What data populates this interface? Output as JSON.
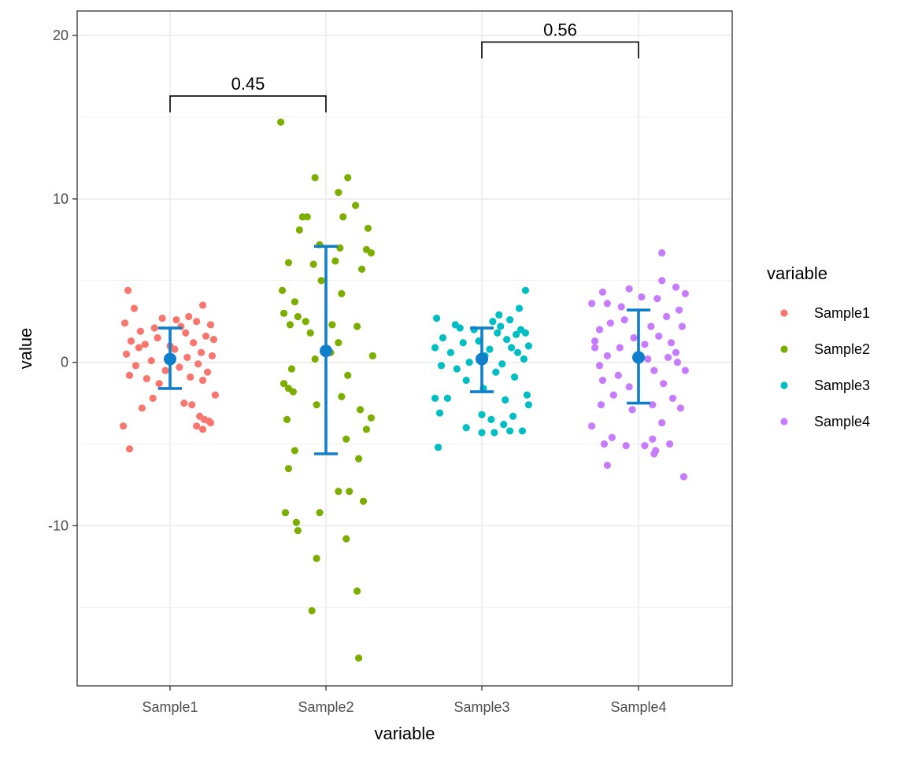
{
  "chart_data": {
    "type": "scatter",
    "subtype": "jitter strip plot with mean ± sd error bars and pairwise comparison brackets",
    "xlabel": "variable",
    "ylabel": "value",
    "categories": [
      "Sample1",
      "Sample2",
      "Sample3",
      "Sample4"
    ],
    "ylim": [
      -19.8,
      21.5
    ],
    "yticks": [
      -10,
      0,
      10,
      20
    ],
    "grid": true,
    "legend": {
      "title": "variable",
      "placement": "right",
      "entries": [
        "Sample1",
        "Sample2",
        "Sample3",
        "Sample4"
      ]
    },
    "colors": {
      "Sample1": "#F8766D",
      "Sample2": "#7CAE00",
      "Sample3": "#00BFC4",
      "Sample4": "#C77CFF",
      "summary": "#0F7FCB"
    },
    "summary": [
      {
        "category": "Sample1",
        "mean": 0.2,
        "lower": -1.6,
        "upper": 2.1
      },
      {
        "category": "Sample2",
        "mean": 0.7,
        "lower": -5.6,
        "upper": 7.1
      },
      {
        "category": "Sample3",
        "mean": 0.2,
        "lower": -1.8,
        "upper": 2.1
      },
      {
        "category": "Sample4",
        "mean": 0.3,
        "lower": -2.5,
        "upper": 3.2
      }
    ],
    "comparisons": [
      {
        "from": "Sample1",
        "to": "Sample2",
        "label": "0.45",
        "y": 16.3,
        "tip": 15.3
      },
      {
        "from": "Sample3",
        "to": "Sample4",
        "label": "0.56",
        "y": 19.6,
        "tip": 18.6
      }
    ],
    "series": [
      {
        "name": "Sample1",
        "points": [
          [
            -0.27,
            4.4
          ],
          [
            0.04,
            2.6
          ],
          [
            0.21,
            3.5
          ],
          [
            -0.23,
            3.3
          ],
          [
            0.12,
            2.8
          ],
          [
            -0.29,
            2.4
          ],
          [
            -0.1,
            2.1
          ],
          [
            0.17,
            2.5
          ],
          [
            0.26,
            2.3
          ],
          [
            -0.19,
            1.9
          ],
          [
            0.07,
            2.2
          ],
          [
            -0.05,
            2.7
          ],
          [
            0.23,
            1.6
          ],
          [
            -0.25,
            1.3
          ],
          [
            -0.16,
            1.1
          ],
          [
            0.1,
            1.8
          ],
          [
            0.28,
            1.4
          ],
          [
            -0.08,
            1.5
          ],
          [
            0.15,
            1.2
          ],
          [
            -0.2,
            0.9
          ],
          [
            0.03,
            0.8
          ],
          [
            0.2,
            0.6
          ],
          [
            -0.28,
            0.5
          ],
          [
            0.27,
            0.4
          ],
          [
            0.11,
            0.3
          ],
          [
            -0.12,
            0.1
          ],
          [
            -0.22,
            -0.2
          ],
          [
            0.18,
            -0.1
          ],
          [
            0.06,
            -0.3
          ],
          [
            -0.03,
            -0.5
          ],
          [
            0.24,
            -0.6
          ],
          [
            -0.26,
            -0.8
          ],
          [
            0.13,
            -0.9
          ],
          [
            -0.15,
            -1.0
          ],
          [
            0.21,
            -1.1
          ],
          [
            0.29,
            -2.0
          ],
          [
            -0.11,
            -2.2
          ],
          [
            0.09,
            -2.5
          ],
          [
            0.14,
            -2.6
          ],
          [
            -0.18,
            -2.8
          ],
          [
            0.19,
            -3.3
          ],
          [
            0.22,
            -3.5
          ],
          [
            0.25,
            -3.6
          ],
          [
            0.17,
            -3.9
          ],
          [
            0.26,
            -3.7
          ],
          [
            0.21,
            -4.1
          ],
          [
            -0.3,
            -3.9
          ],
          [
            -0.26,
            -5.3
          ],
          [
            -0.07,
            -1.3
          ],
          [
            0.0,
            1.0
          ]
        ]
      },
      {
        "name": "Sample2",
        "points": [
          [
            -0.29,
            14.7
          ],
          [
            -0.07,
            11.3
          ],
          [
            0.14,
            11.3
          ],
          [
            0.08,
            10.4
          ],
          [
            0.19,
            9.6
          ],
          [
            -0.15,
            8.9
          ],
          [
            -0.12,
            8.9
          ],
          [
            0.11,
            8.9
          ],
          [
            -0.17,
            8.1
          ],
          [
            0.27,
            8.2
          ],
          [
            -0.04,
            7.2
          ],
          [
            0.09,
            7.0
          ],
          [
            0.26,
            6.9
          ],
          [
            0.29,
            6.7
          ],
          [
            0.06,
            6.2
          ],
          [
            -0.24,
            6.1
          ],
          [
            -0.08,
            6.0
          ],
          [
            0.23,
            5.7
          ],
          [
            -0.03,
            5.0
          ],
          [
            -0.28,
            4.4
          ],
          [
            0.1,
            4.2
          ],
          [
            -0.2,
            3.7
          ],
          [
            -0.27,
            3.0
          ],
          [
            -0.18,
            2.8
          ],
          [
            -0.13,
            2.5
          ],
          [
            -0.23,
            2.3
          ],
          [
            0.04,
            2.3
          ],
          [
            0.2,
            2.2
          ],
          [
            -0.1,
            1.8
          ],
          [
            0.08,
            1.2
          ],
          [
            0.03,
            0.6
          ],
          [
            0.3,
            0.4
          ],
          [
            -0.07,
            0.2
          ],
          [
            -0.22,
            -0.4
          ],
          [
            0.14,
            -0.8
          ],
          [
            -0.27,
            -1.3
          ],
          [
            -0.24,
            -1.6
          ],
          [
            -0.21,
            -1.8
          ],
          [
            0.1,
            -2.1
          ],
          [
            -0.06,
            -2.6
          ],
          [
            0.22,
            -2.9
          ],
          [
            0.29,
            -3.4
          ],
          [
            -0.25,
            -3.5
          ],
          [
            0.26,
            -4.1
          ],
          [
            0.13,
            -4.7
          ],
          [
            -0.2,
            -5.4
          ],
          [
            0.21,
            -5.9
          ],
          [
            -0.24,
            -6.5
          ],
          [
            0.08,
            -7.9
          ],
          [
            0.15,
            -7.9
          ],
          [
            0.24,
            -8.5
          ],
          [
            -0.26,
            -9.2
          ],
          [
            -0.04,
            -9.2
          ],
          [
            -0.19,
            -9.8
          ],
          [
            -0.18,
            -10.3
          ],
          [
            0.13,
            -10.8
          ],
          [
            -0.06,
            -12.0
          ],
          [
            0.2,
            -14.0
          ],
          [
            -0.09,
            -15.2
          ],
          [
            0.21,
            -18.1
          ]
        ]
      },
      {
        "name": "Sample3",
        "points": [
          [
            0.28,
            4.4
          ],
          [
            -0.29,
            2.7
          ],
          [
            0.07,
            2.5
          ],
          [
            0.18,
            2.6
          ],
          [
            -0.17,
            2.3
          ],
          [
            0.12,
            2.2
          ],
          [
            -0.05,
            2.0
          ],
          [
            0.25,
            2.0
          ],
          [
            0.22,
            1.7
          ],
          [
            -0.25,
            1.5
          ],
          [
            0.1,
            1.8
          ],
          [
            0.16,
            1.4
          ],
          [
            -0.12,
            1.2
          ],
          [
            0.3,
            1.0
          ],
          [
            -0.3,
            0.9
          ],
          [
            0.05,
            0.8
          ],
          [
            0.19,
            0.9
          ],
          [
            -0.2,
            0.6
          ],
          [
            0.02,
            0.4
          ],
          [
            0.27,
            0.2
          ],
          [
            -0.08,
            0.0
          ],
          [
            -0.26,
            -0.2
          ],
          [
            0.13,
            -0.1
          ],
          [
            -0.16,
            -0.4
          ],
          [
            0.09,
            -0.6
          ],
          [
            0.21,
            -0.9
          ],
          [
            -0.1,
            -1.1
          ],
          [
            0.01,
            -1.6
          ],
          [
            0.29,
            -2.0
          ],
          [
            -0.3,
            -2.2
          ],
          [
            -0.22,
            -2.2
          ],
          [
            0.15,
            -2.3
          ],
          [
            0.3,
            -2.6
          ],
          [
            -0.27,
            -3.1
          ],
          [
            0.0,
            -3.2
          ],
          [
            0.2,
            -3.3
          ],
          [
            0.06,
            -3.5
          ],
          [
            0.14,
            -3.8
          ],
          [
            -0.1,
            -4.0
          ],
          [
            0.0,
            -4.3
          ],
          [
            0.08,
            -4.3
          ],
          [
            0.18,
            -4.2
          ],
          [
            0.26,
            -4.2
          ],
          [
            -0.28,
            -5.2
          ],
          [
            0.23,
            0.6
          ],
          [
            -0.14,
            2.1
          ],
          [
            0.11,
            2.9
          ],
          [
            0.24,
            3.3
          ],
          [
            0.28,
            1.8
          ],
          [
            -0.02,
            1.3
          ]
        ]
      },
      {
        "name": "Sample4",
        "points": [
          [
            0.15,
            6.7
          ],
          [
            -0.23,
            4.3
          ],
          [
            -0.06,
            4.5
          ],
          [
            0.02,
            4.0
          ],
          [
            0.15,
            5.0
          ],
          [
            0.24,
            4.6
          ],
          [
            0.3,
            4.2
          ],
          [
            -0.3,
            3.6
          ],
          [
            -0.2,
            3.6
          ],
          [
            -0.11,
            3.4
          ],
          [
            0.26,
            3.2
          ],
          [
            0.18,
            2.8
          ],
          [
            -0.18,
            2.4
          ],
          [
            0.08,
            2.2
          ],
          [
            -0.25,
            2.0
          ],
          [
            0.28,
            2.2
          ],
          [
            -0.03,
            1.5
          ],
          [
            0.13,
            1.6
          ],
          [
            -0.28,
            1.3
          ],
          [
            0.21,
            1.2
          ],
          [
            -0.12,
            0.9
          ],
          [
            0.24,
            0.6
          ],
          [
            -0.2,
            0.4
          ],
          [
            0.06,
            0.2
          ],
          [
            0.19,
            0.3
          ],
          [
            -0.25,
            -0.2
          ],
          [
            0.1,
            -0.5
          ],
          [
            0.3,
            -0.5
          ],
          [
            -0.13,
            -0.8
          ],
          [
            -0.23,
            -1.1
          ],
          [
            0.16,
            -1.3
          ],
          [
            -0.06,
            -1.5
          ],
          [
            -0.16,
            -2.0
          ],
          [
            0.22,
            -2.2
          ],
          [
            -0.24,
            -2.6
          ],
          [
            0.09,
            -2.6
          ],
          [
            -0.04,
            -2.9
          ],
          [
            0.27,
            -2.8
          ],
          [
            -0.3,
            -3.9
          ],
          [
            0.15,
            -3.7
          ],
          [
            -0.17,
            -4.6
          ],
          [
            0.09,
            -4.7
          ],
          [
            -0.22,
            -5.0
          ],
          [
            -0.08,
            -5.1
          ],
          [
            0.04,
            -5.1
          ],
          [
            0.2,
            -5.0
          ],
          [
            0.11,
            -5.4
          ],
          [
            0.1,
            -5.6
          ],
          [
            -0.2,
            -6.3
          ],
          [
            0.29,
            -7.0
          ],
          [
            -0.28,
            0.9
          ],
          [
            0.04,
            1.1
          ],
          [
            -0.09,
            2.6
          ],
          [
            0.12,
            3.9
          ],
          [
            0.25,
            0.0
          ]
        ]
      }
    ]
  }
}
